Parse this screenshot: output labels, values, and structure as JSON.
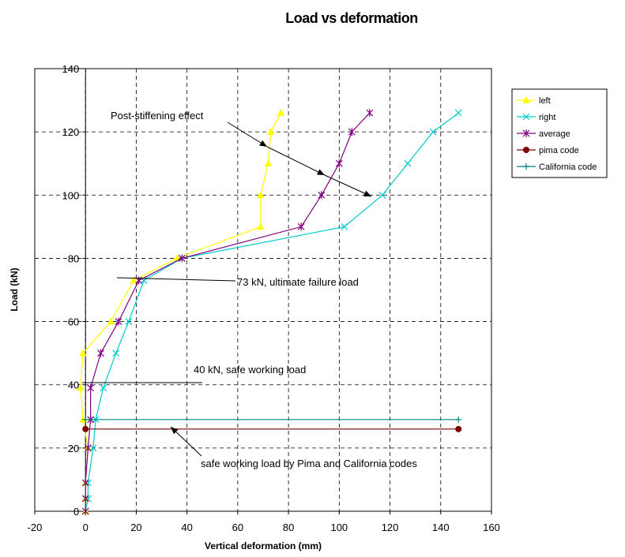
{
  "chart_data": {
    "type": "line",
    "title": "Load vs deformation",
    "xlabel": "Vertical deformation (mm)",
    "ylabel": "Load (kN)",
    "xlim": [
      -20,
      160
    ],
    "ylim": [
      0,
      140
    ],
    "xticks": [
      -20,
      0,
      20,
      40,
      60,
      80,
      100,
      120,
      140,
      160
    ],
    "yticks": [
      0,
      20,
      40,
      60,
      80,
      100,
      120,
      140
    ],
    "grid": true,
    "legend_position": "right",
    "series": [
      {
        "name": "left",
        "color": "#ffff00",
        "marker": "triangle",
        "points": [
          [
            0,
            0
          ],
          [
            0,
            4
          ],
          [
            0,
            9
          ],
          [
            1,
            20
          ],
          [
            -1,
            29
          ],
          [
            -2,
            39
          ],
          [
            -1,
            50
          ],
          [
            10,
            60
          ],
          [
            19,
            73
          ],
          [
            36,
            80
          ],
          [
            69,
            90
          ],
          [
            69,
            100
          ],
          [
            72,
            110
          ],
          [
            73,
            120
          ],
          [
            77,
            126
          ]
        ]
      },
      {
        "name": "right",
        "color": "#00cccc",
        "marker": "x",
        "points": [
          [
            0,
            0
          ],
          [
            1,
            4
          ],
          [
            1,
            9
          ],
          [
            3,
            20
          ],
          [
            4,
            29
          ],
          [
            7,
            39
          ],
          [
            12,
            50
          ],
          [
            17,
            60
          ],
          [
            23,
            73
          ],
          [
            38,
            80
          ],
          [
            102,
            90
          ],
          [
            117,
            100
          ],
          [
            127,
            110
          ],
          [
            137,
            120
          ],
          [
            147,
            126
          ]
        ]
      },
      {
        "name": "average",
        "color": "#800080",
        "marker": "star",
        "points": [
          [
            0,
            0
          ],
          [
            0,
            4
          ],
          [
            0,
            9
          ],
          [
            1,
            20
          ],
          [
            2,
            29
          ],
          [
            2,
            39
          ],
          [
            6,
            50
          ],
          [
            13,
            60
          ],
          [
            21,
            73
          ],
          [
            38,
            80
          ],
          [
            85,
            90
          ],
          [
            93,
            100
          ],
          [
            100,
            110
          ],
          [
            105,
            120
          ],
          [
            112,
            126
          ]
        ]
      },
      {
        "name": "pima code",
        "color": "#800000",
        "marker": "circle",
        "points": [
          [
            0,
            26
          ],
          [
            147,
            26
          ]
        ]
      },
      {
        "name": "California code",
        "color": "#008080",
        "marker": "plus",
        "points": [
          [
            0,
            29
          ],
          [
            147,
            29
          ]
        ]
      }
    ],
    "annotations": [
      {
        "text": "Post-stiffening effect"
      },
      {
        "text": "73 kN, ultimate failure load"
      },
      {
        "text": "40 kN, safe working load"
      },
      {
        "text": "safe working load by Pima and California codes"
      }
    ]
  }
}
